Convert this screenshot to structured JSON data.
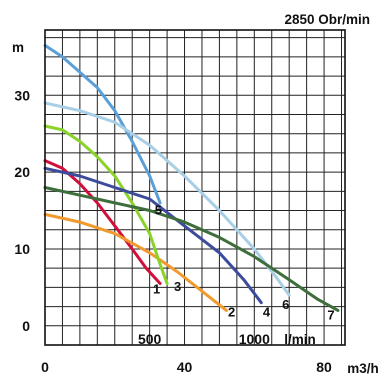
{
  "chart_data": {
    "type": "line",
    "title": "2850 Obr/min",
    "ylabel": "m",
    "xlabel_lpm": "l/min",
    "xlabel_m3h": "m3/h",
    "y_ticks": [
      0,
      10,
      20,
      30
    ],
    "x_ticks_lpm": [
      500,
      1000
    ],
    "x_ticks_m3h": [
      0,
      40,
      80
    ],
    "xlim_m3h": [
      0,
      86
    ],
    "ylim": [
      -2.5,
      38.5
    ],
    "series": [
      {
        "name": "1",
        "color": "#d0103a",
        "label_pos": [
          32,
          4.2
        ],
        "points": [
          [
            0,
            21.5
          ],
          [
            5,
            20.5
          ],
          [
            10,
            18.5
          ],
          [
            15,
            16
          ],
          [
            20,
            13
          ],
          [
            25,
            10
          ],
          [
            29,
            7.5
          ],
          [
            33,
            5.5
          ]
        ]
      },
      {
        "name": "2",
        "color": "#f29a2e",
        "label_pos": [
          53.5,
          1.2
        ],
        "points": [
          [
            0,
            14.5
          ],
          [
            10,
            13.5
          ],
          [
            20,
            12
          ],
          [
            30,
            9.5
          ],
          [
            38,
            7
          ],
          [
            45,
            4.5
          ],
          [
            52,
            2
          ]
        ]
      },
      {
        "name": "3",
        "color": "#8ad42a",
        "label_pos": [
          38,
          4.5
        ],
        "points": [
          [
            0,
            26
          ],
          [
            5,
            25.5
          ],
          [
            10,
            24
          ],
          [
            15,
            22
          ],
          [
            20,
            19.5
          ],
          [
            25,
            16
          ],
          [
            30,
            12
          ],
          [
            33,
            8
          ],
          [
            35,
            5.5
          ]
        ]
      },
      {
        "name": "4",
        "color": "#3c4b9c",
        "label_pos": [
          63.5,
          1.2
        ],
        "points": [
          [
            0,
            20.5
          ],
          [
            10,
            19.5
          ],
          [
            20,
            18
          ],
          [
            30,
            16.5
          ],
          [
            40,
            13
          ],
          [
            50,
            9.5
          ],
          [
            57,
            6
          ],
          [
            62,
            3
          ]
        ]
      },
      {
        "name": "5",
        "color": "#5b9fd8",
        "label_pos": [
          32.5,
          14.5
        ],
        "points": [
          [
            0,
            36.5
          ],
          [
            5,
            35
          ],
          [
            10,
            33
          ],
          [
            15,
            31
          ],
          [
            20,
            28
          ],
          [
            25,
            24
          ],
          [
            30,
            19.5
          ],
          [
            33,
            16
          ]
        ]
      },
      {
        "name": "6",
        "color": "#a8cfe6",
        "label_pos": [
          69,
          2.2
        ],
        "points": [
          [
            0,
            29
          ],
          [
            10,
            28
          ],
          [
            20,
            26.5
          ],
          [
            30,
            23.5
          ],
          [
            40,
            19.5
          ],
          [
            50,
            15
          ],
          [
            60,
            10
          ],
          [
            66,
            6.5
          ],
          [
            70,
            4
          ]
        ]
      },
      {
        "name": "7",
        "color": "#3e6e3c",
        "label_pos": [
          82,
          0.8
        ],
        "points": [
          [
            0,
            18
          ],
          [
            10,
            17
          ],
          [
            20,
            16
          ],
          [
            30,
            15
          ],
          [
            40,
            13.5
          ],
          [
            50,
            11.5
          ],
          [
            60,
            9
          ],
          [
            70,
            6
          ],
          [
            78,
            3.5
          ],
          [
            84,
            2
          ]
        ]
      }
    ]
  }
}
